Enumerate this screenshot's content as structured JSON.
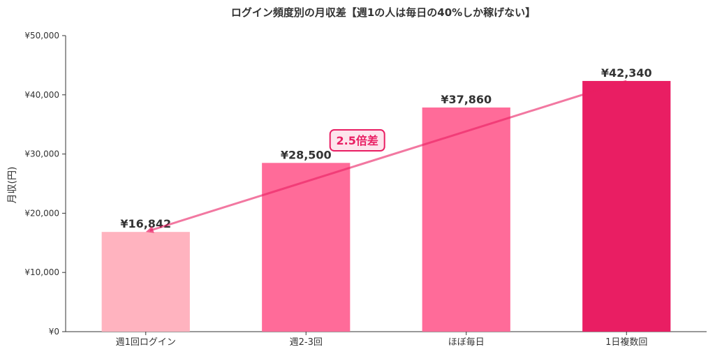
{
  "chart_data": {
    "type": "bar",
    "title": "ログイン頻度別の月収差【週1の人は毎日の40%しか稼げない】",
    "xlabel": "",
    "ylabel": "月収(円)",
    "categories": [
      "週1回ログイン",
      "週2-3回",
      "ほぼ毎日",
      "1日複数回"
    ],
    "values": [
      16842,
      28500,
      37860,
      42340
    ],
    "value_labels": [
      "¥16,842",
      "¥28,500",
      "¥37,860",
      "¥42,340"
    ],
    "bar_colors": [
      "#ffb3bf",
      "#ff6b99",
      "#ff6b99",
      "#e91e63"
    ],
    "ylim": [
      0,
      50000
    ],
    "yticks": [
      0,
      10000,
      20000,
      30000,
      40000,
      50000
    ],
    "ytick_labels": [
      "¥0",
      "¥10,000",
      "¥20,000",
      "¥30,000",
      "¥40,000",
      "¥50,000"
    ],
    "grid": false,
    "annotation": {
      "text": "2.5倍差",
      "from_category": "週1回ログイン",
      "to_category": "1日複数回",
      "color": "#e91e63"
    }
  }
}
